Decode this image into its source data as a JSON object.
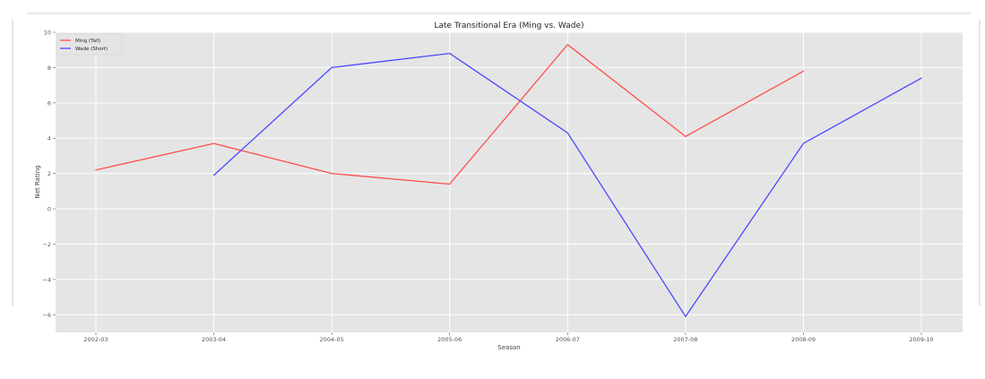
{
  "chart_data": {
    "type": "line",
    "title": "Late Transitional Era (Ming vs. Wade)",
    "xlabel": "Season",
    "ylabel": "Net Rating",
    "categories": [
      "2002-03",
      "2003-04",
      "2004-05",
      "2005-06",
      "2006-07",
      "2007-08",
      "2008-09",
      "2009-10"
    ],
    "yticks": [
      10,
      8,
      6,
      4,
      2,
      0,
      -2,
      -4,
      -6
    ],
    "ytick_labels": [
      "10",
      "8",
      "6",
      "4",
      "2",
      "0",
      "−2",
      "−4",
      "−6"
    ],
    "ylim": [
      -7,
      10
    ],
    "grid": true,
    "legend_position": "top-left",
    "series": [
      {
        "name": "Ming (Tall)",
        "color": "#ff4f4f",
        "values": [
          2.2,
          3.7,
          2.0,
          1.4,
          9.3,
          4.1,
          7.8,
          null
        ]
      },
      {
        "name": "Wade (Short)",
        "color": "#4a4aff",
        "values": [
          null,
          1.9,
          8.0,
          8.8,
          4.3,
          -6.1,
          3.7,
          7.4
        ]
      }
    ]
  }
}
